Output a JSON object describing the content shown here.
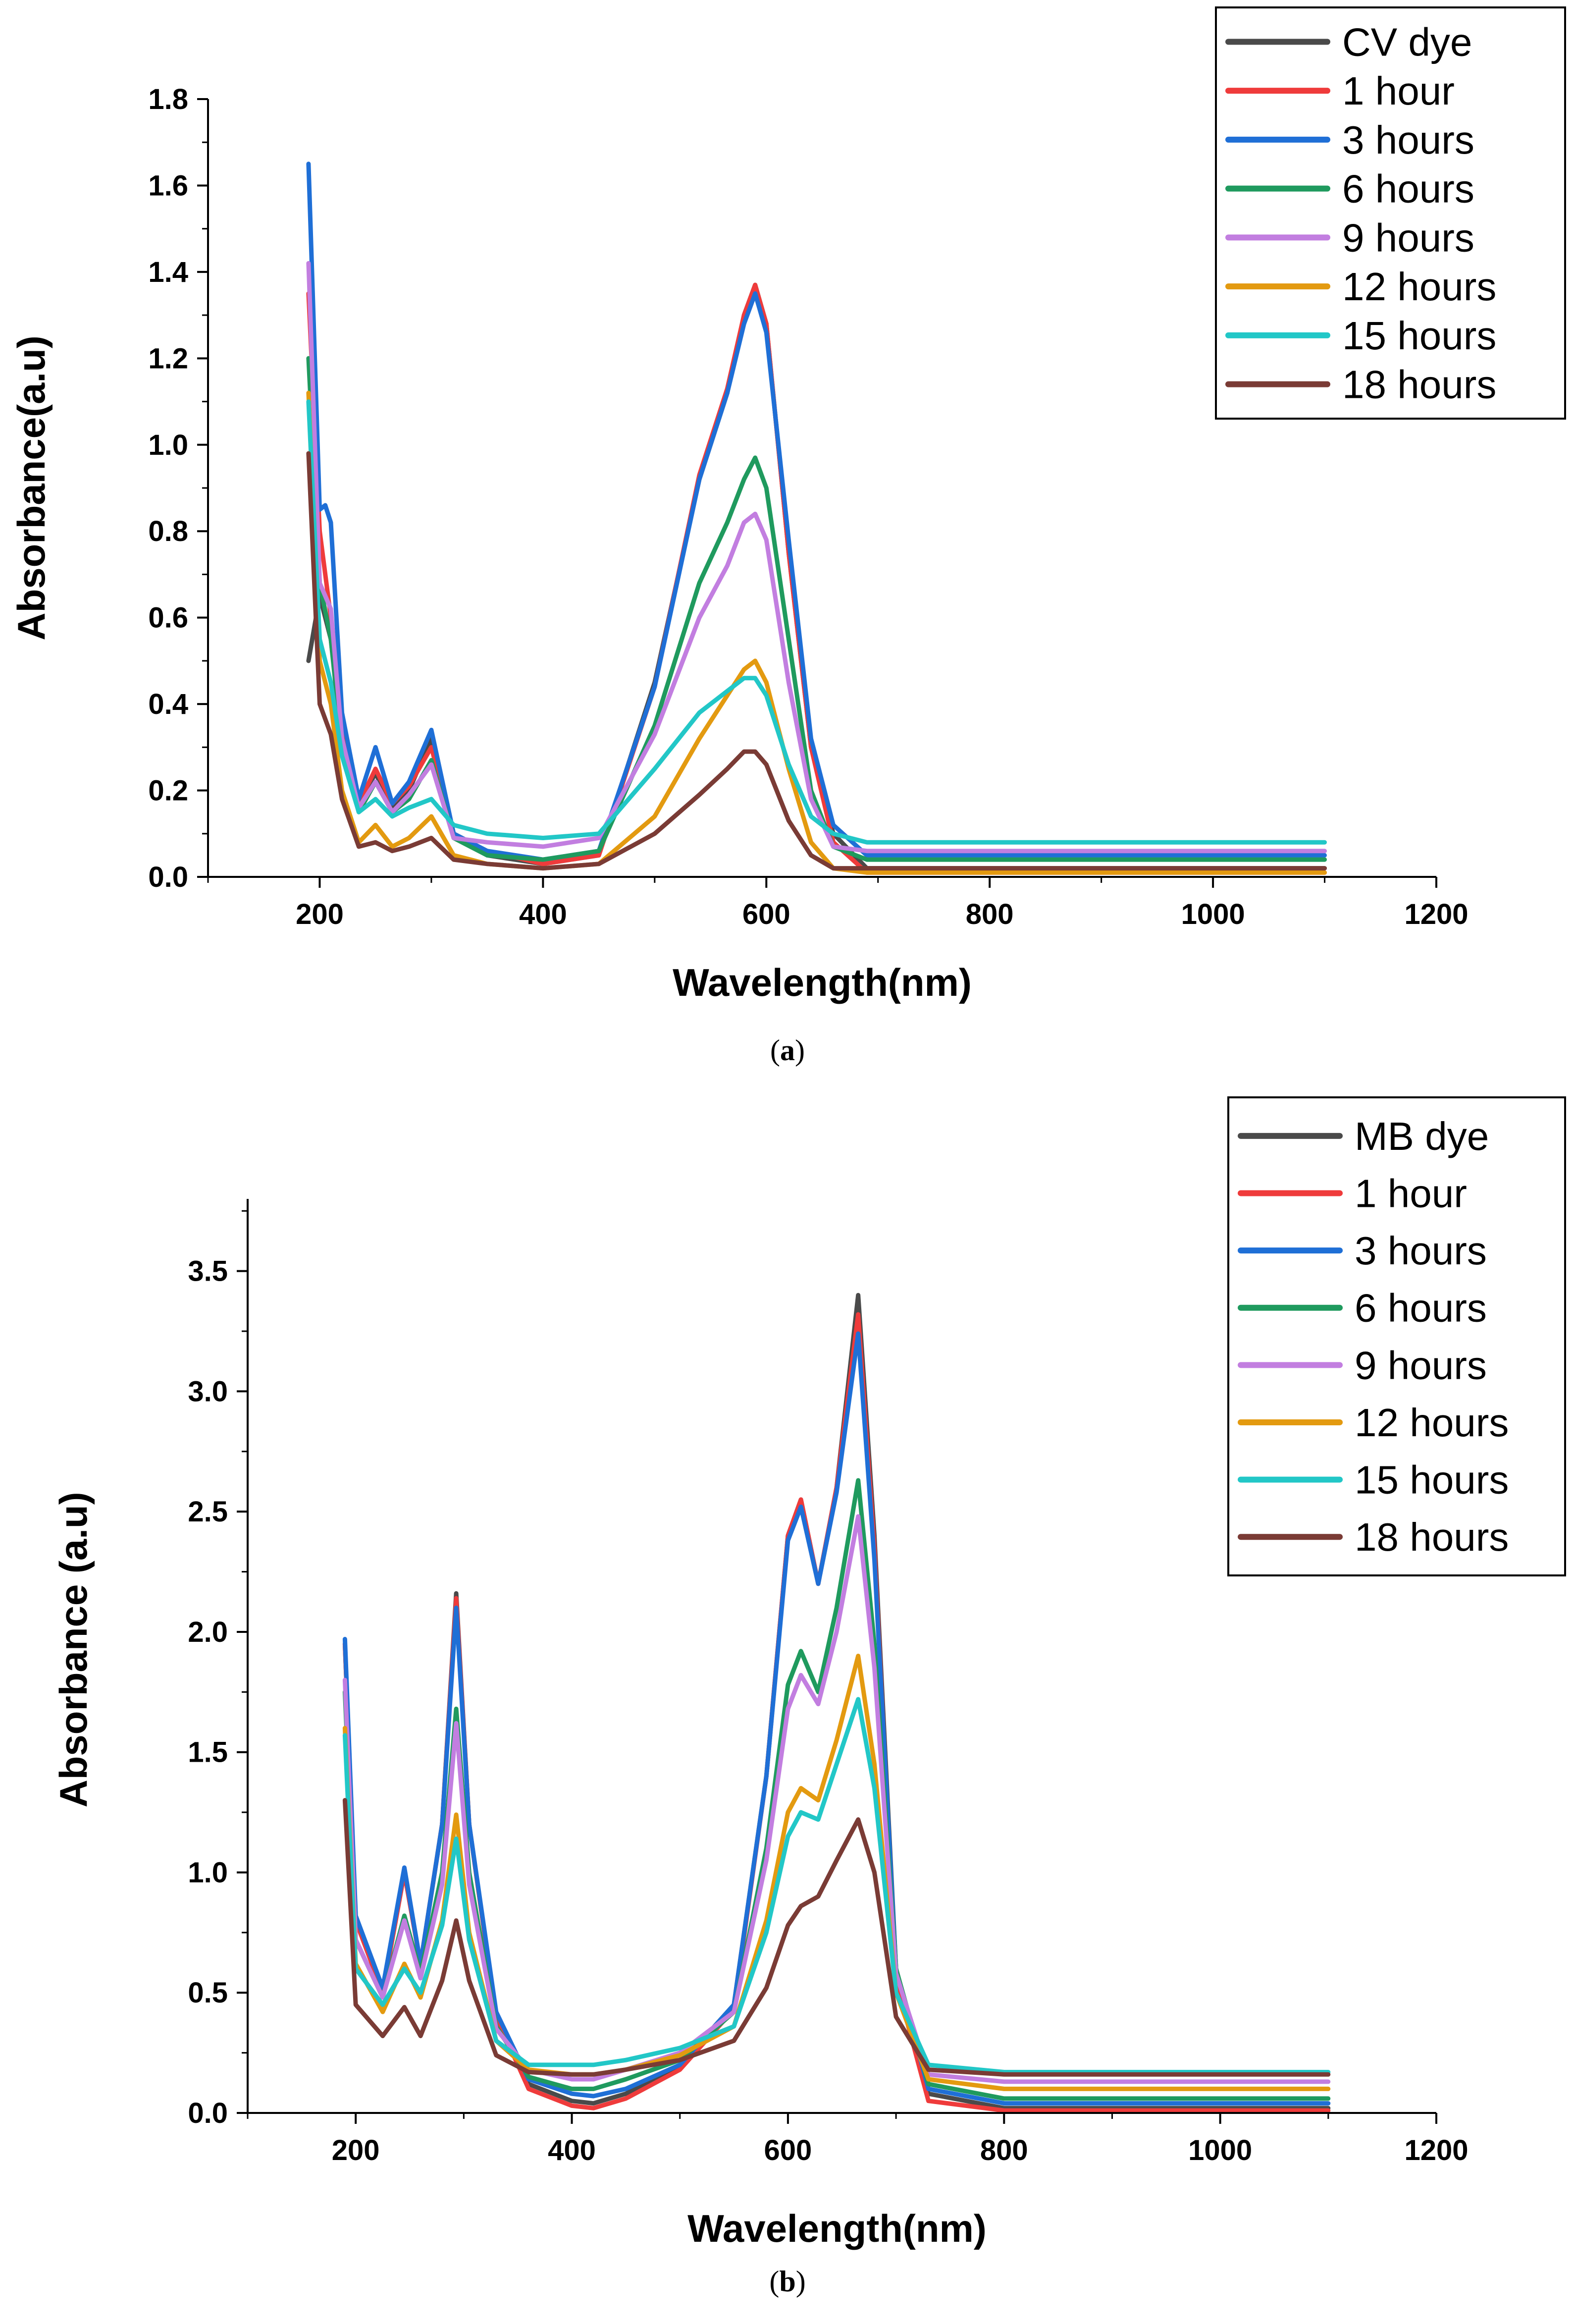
{
  "chart_data": [
    {
      "id": "a",
      "type": "line",
      "caption": "a",
      "xlabel": "Wavelength(nm)",
      "ylabel": "Absorbance(a.u)",
      "xlim": [
        100,
        1200
      ],
      "ylim": [
        0,
        1.8
      ],
      "xticks": [
        200,
        400,
        600,
        800,
        1000,
        1200
      ],
      "xtick_labels": [
        "200",
        "400",
        "600",
        "800",
        "1000",
        "1200"
      ],
      "yticks": [
        0,
        0.2,
        0.4,
        0.6,
        0.8,
        1.0,
        1.2,
        1.4,
        1.6,
        1.8
      ],
      "ytick_labels": [
        "0.0",
        "0.2",
        "0.4",
        "0.6",
        "0.8",
        "1.0",
        "1.2",
        "1.4",
        "1.6",
        "1.8"
      ],
      "legend_position": "top-right",
      "series": [
        {
          "name": "CV dye",
          "color": "#4a4a4a",
          "x": [
            190,
            200,
            210,
            220,
            235,
            250,
            265,
            280,
            300,
            320,
            350,
            400,
            450,
            500,
            540,
            565,
            580,
            590,
            600,
            620,
            640,
            660,
            690,
            800,
            1100
          ],
          "y": [
            0.5,
            0.65,
            0.55,
            0.32,
            0.17,
            0.24,
            0.16,
            0.2,
            0.32,
            0.1,
            0.05,
            0.03,
            0.05,
            0.45,
            0.92,
            1.12,
            1.3,
            1.37,
            1.28,
            0.75,
            0.3,
            0.1,
            0.02,
            0.02,
            0.02
          ]
        },
        {
          "name": "1 hour",
          "color": "#ef3b3b",
          "x": [
            190,
            200,
            210,
            220,
            235,
            250,
            265,
            280,
            300,
            320,
            350,
            400,
            450,
            500,
            540,
            565,
            580,
            590,
            600,
            620,
            640,
            660,
            690,
            800,
            1100
          ],
          "y": [
            1.35,
            0.8,
            0.6,
            0.35,
            0.17,
            0.25,
            0.17,
            0.21,
            0.3,
            0.1,
            0.06,
            0.03,
            0.05,
            0.44,
            0.93,
            1.13,
            1.3,
            1.37,
            1.28,
            0.75,
            0.3,
            0.08,
            0.01,
            0.01,
            0.01
          ]
        },
        {
          "name": "3 hours",
          "color": "#1f6fd6",
          "x": [
            190,
            200,
            205,
            210,
            220,
            235,
            250,
            265,
            280,
            300,
            320,
            350,
            400,
            450,
            500,
            540,
            565,
            580,
            590,
            600,
            620,
            640,
            660,
            690,
            800,
            1100
          ],
          "y": [
            1.65,
            0.85,
            0.86,
            0.82,
            0.38,
            0.18,
            0.3,
            0.17,
            0.22,
            0.34,
            0.1,
            0.06,
            0.04,
            0.06,
            0.44,
            0.92,
            1.12,
            1.28,
            1.35,
            1.26,
            0.78,
            0.32,
            0.12,
            0.05,
            0.05,
            0.05
          ]
        },
        {
          "name": "6 hours",
          "color": "#1f9a5e",
          "x": [
            190,
            200,
            210,
            220,
            235,
            250,
            265,
            280,
            300,
            320,
            350,
            400,
            450,
            500,
            540,
            565,
            580,
            590,
            600,
            620,
            640,
            660,
            690,
            800,
            1100
          ],
          "y": [
            1.2,
            0.68,
            0.55,
            0.3,
            0.15,
            0.22,
            0.15,
            0.18,
            0.27,
            0.09,
            0.05,
            0.04,
            0.06,
            0.35,
            0.68,
            0.82,
            0.92,
            0.97,
            0.9,
            0.55,
            0.2,
            0.07,
            0.04,
            0.04,
            0.04
          ]
        },
        {
          "name": "9 hours",
          "color": "#c27ee0",
          "x": [
            190,
            200,
            210,
            220,
            235,
            250,
            265,
            280,
            300,
            320,
            350,
            400,
            450,
            500,
            540,
            565,
            580,
            590,
            600,
            620,
            640,
            660,
            690,
            800,
            1100
          ],
          "y": [
            1.42,
            0.68,
            0.62,
            0.32,
            0.16,
            0.22,
            0.15,
            0.19,
            0.26,
            0.09,
            0.08,
            0.07,
            0.09,
            0.33,
            0.6,
            0.72,
            0.82,
            0.84,
            0.78,
            0.45,
            0.18,
            0.07,
            0.06,
            0.06,
            0.06
          ]
        },
        {
          "name": "12 hours",
          "color": "#e39a10",
          "x": [
            190,
            200,
            210,
            220,
            235,
            250,
            265,
            280,
            300,
            320,
            350,
            400,
            450,
            500,
            540,
            565,
            580,
            590,
            600,
            620,
            640,
            660,
            690,
            800,
            1100
          ],
          "y": [
            1.12,
            0.5,
            0.4,
            0.2,
            0.08,
            0.12,
            0.07,
            0.09,
            0.14,
            0.05,
            0.03,
            0.02,
            0.03,
            0.14,
            0.32,
            0.42,
            0.48,
            0.5,
            0.45,
            0.25,
            0.08,
            0.02,
            0.01,
            0.01,
            0.01
          ]
        },
        {
          "name": "15 hours",
          "color": "#22c7c7",
          "x": [
            190,
            200,
            210,
            220,
            235,
            250,
            265,
            280,
            300,
            320,
            350,
            400,
            450,
            500,
            540,
            565,
            580,
            590,
            600,
            620,
            640,
            660,
            690,
            800,
            1100
          ],
          "y": [
            1.1,
            0.55,
            0.45,
            0.28,
            0.15,
            0.18,
            0.14,
            0.16,
            0.18,
            0.12,
            0.1,
            0.09,
            0.1,
            0.25,
            0.38,
            0.43,
            0.46,
            0.46,
            0.42,
            0.26,
            0.14,
            0.1,
            0.08,
            0.08,
            0.08
          ]
        },
        {
          "name": "18 hours",
          "color": "#7a3b35",
          "x": [
            190,
            200,
            210,
            220,
            235,
            250,
            265,
            280,
            300,
            320,
            350,
            400,
            450,
            500,
            540,
            565,
            580,
            590,
            600,
            620,
            640,
            660,
            690,
            800,
            1100
          ],
          "y": [
            0.98,
            0.4,
            0.33,
            0.18,
            0.07,
            0.08,
            0.06,
            0.07,
            0.09,
            0.04,
            0.03,
            0.02,
            0.03,
            0.1,
            0.19,
            0.25,
            0.29,
            0.29,
            0.26,
            0.13,
            0.05,
            0.02,
            0.02,
            0.02,
            0.02
          ]
        }
      ]
    },
    {
      "id": "b",
      "type": "line",
      "caption": "b",
      "xlabel": "Wavelength(nm)",
      "ylabel": "Absorbance (a.u)",
      "xlim": [
        100,
        1200
      ],
      "ylim": [
        0,
        3.8
      ],
      "xticks": [
        200,
        400,
        600,
        800,
        1000,
        1200
      ],
      "xtick_labels": [
        "200",
        "400",
        "600",
        "800",
        "1000",
        "1200"
      ],
      "yticks": [
        0,
        0.5,
        1.0,
        1.5,
        2.0,
        2.5,
        3.0,
        3.5
      ],
      "ytick_labels": [
        "0.0",
        "0.5",
        "1.0",
        "1.5",
        "2.0",
        "2.5",
        "3.0",
        "3.5"
      ],
      "legend_position": "top-right",
      "series": [
        {
          "name": "MB dye",
          "color": "#4a4a4a",
          "x": [
            190,
            200,
            225,
            245,
            260,
            280,
            293,
            305,
            330,
            360,
            400,
            420,
            450,
            500,
            550,
            580,
            600,
            612,
            628,
            645,
            665,
            680,
            700,
            730,
            800,
            1100
          ],
          "y": [
            1.95,
            0.8,
            0.5,
            1.0,
            0.62,
            1.2,
            2.16,
            1.2,
            0.4,
            0.12,
            0.05,
            0.04,
            0.08,
            0.2,
            0.45,
            1.4,
            2.4,
            2.55,
            2.2,
            2.6,
            3.4,
            2.4,
            0.6,
            0.08,
            0.02,
            0.02
          ]
        },
        {
          "name": "1 hour",
          "color": "#ef3b3b",
          "x": [
            190,
            200,
            225,
            245,
            260,
            280,
            293,
            305,
            330,
            360,
            400,
            420,
            450,
            500,
            550,
            580,
            600,
            612,
            628,
            645,
            665,
            680,
            700,
            730,
            800,
            1100
          ],
          "y": [
            1.95,
            0.8,
            0.5,
            1.0,
            0.62,
            1.2,
            2.14,
            1.2,
            0.4,
            0.1,
            0.03,
            0.02,
            0.06,
            0.18,
            0.43,
            1.4,
            2.4,
            2.55,
            2.2,
            2.6,
            3.32,
            2.35,
            0.55,
            0.05,
            0.01,
            0.01
          ]
        },
        {
          "name": "3 hours",
          "color": "#1f6fd6",
          "x": [
            190,
            200,
            225,
            245,
            260,
            280,
            293,
            305,
            330,
            360,
            400,
            420,
            450,
            500,
            550,
            580,
            600,
            612,
            628,
            645,
            665,
            680,
            700,
            730,
            800,
            1100
          ],
          "y": [
            1.97,
            0.82,
            0.52,
            1.02,
            0.62,
            1.2,
            2.1,
            1.2,
            0.42,
            0.14,
            0.08,
            0.07,
            0.1,
            0.2,
            0.45,
            1.4,
            2.38,
            2.52,
            2.2,
            2.58,
            3.24,
            2.3,
            0.6,
            0.1,
            0.04,
            0.04
          ]
        },
        {
          "name": "6 hours",
          "color": "#1f9a5e",
          "x": [
            190,
            200,
            225,
            245,
            260,
            280,
            293,
            305,
            330,
            360,
            400,
            420,
            450,
            500,
            550,
            580,
            600,
            612,
            628,
            645,
            665,
            680,
            700,
            730,
            800,
            1100
          ],
          "y": [
            1.75,
            0.72,
            0.48,
            0.82,
            0.58,
            1.0,
            1.68,
            1.0,
            0.36,
            0.15,
            0.1,
            0.1,
            0.14,
            0.22,
            0.42,
            1.1,
            1.78,
            1.92,
            1.75,
            2.1,
            2.63,
            1.95,
            0.6,
            0.12,
            0.06,
            0.06
          ]
        },
        {
          "name": "9 hours",
          "color": "#c27ee0",
          "x": [
            190,
            200,
            225,
            245,
            260,
            280,
            293,
            305,
            330,
            360,
            400,
            420,
            450,
            500,
            550,
            580,
            600,
            612,
            628,
            645,
            665,
            680,
            700,
            730,
            800,
            1100
          ],
          "y": [
            1.8,
            0.72,
            0.48,
            0.8,
            0.56,
            0.95,
            1.62,
            0.95,
            0.35,
            0.18,
            0.14,
            0.14,
            0.18,
            0.25,
            0.42,
            1.05,
            1.68,
            1.82,
            1.7,
            2.0,
            2.48,
            1.85,
            0.58,
            0.16,
            0.13,
            0.13
          ]
        },
        {
          "name": "12 hours",
          "color": "#e39a10",
          "x": [
            190,
            200,
            225,
            245,
            260,
            280,
            293,
            305,
            330,
            360,
            400,
            420,
            450,
            500,
            550,
            580,
            600,
            612,
            628,
            645,
            665,
            680,
            700,
            730,
            800,
            1100
          ],
          "y": [
            1.6,
            0.62,
            0.42,
            0.62,
            0.48,
            0.8,
            1.24,
            0.75,
            0.3,
            0.18,
            0.16,
            0.16,
            0.18,
            0.24,
            0.36,
            0.8,
            1.25,
            1.35,
            1.3,
            1.55,
            1.9,
            1.45,
            0.5,
            0.14,
            0.1,
            0.1
          ]
        },
        {
          "name": "15 hours",
          "color": "#22c7c7",
          "x": [
            190,
            200,
            225,
            245,
            260,
            280,
            293,
            305,
            330,
            360,
            400,
            420,
            450,
            500,
            550,
            580,
            600,
            612,
            628,
            645,
            665,
            680,
            700,
            730,
            800,
            1100
          ],
          "y": [
            1.57,
            0.6,
            0.45,
            0.6,
            0.5,
            0.78,
            1.14,
            0.72,
            0.3,
            0.2,
            0.2,
            0.2,
            0.22,
            0.27,
            0.36,
            0.75,
            1.15,
            1.25,
            1.22,
            1.45,
            1.72,
            1.35,
            0.5,
            0.2,
            0.17,
            0.17
          ]
        },
        {
          "name": "18 hours",
          "color": "#7a3b35",
          "x": [
            190,
            200,
            225,
            245,
            260,
            280,
            293,
            305,
            330,
            360,
            400,
            420,
            450,
            500,
            550,
            580,
            600,
            612,
            628,
            645,
            665,
            680,
            700,
            730,
            800,
            1100
          ],
          "y": [
            1.3,
            0.45,
            0.32,
            0.44,
            0.32,
            0.55,
            0.8,
            0.55,
            0.24,
            0.17,
            0.16,
            0.16,
            0.18,
            0.22,
            0.3,
            0.52,
            0.78,
            0.86,
            0.9,
            1.05,
            1.22,
            1.0,
            0.4,
            0.18,
            0.16,
            0.16
          ]
        }
      ]
    }
  ]
}
